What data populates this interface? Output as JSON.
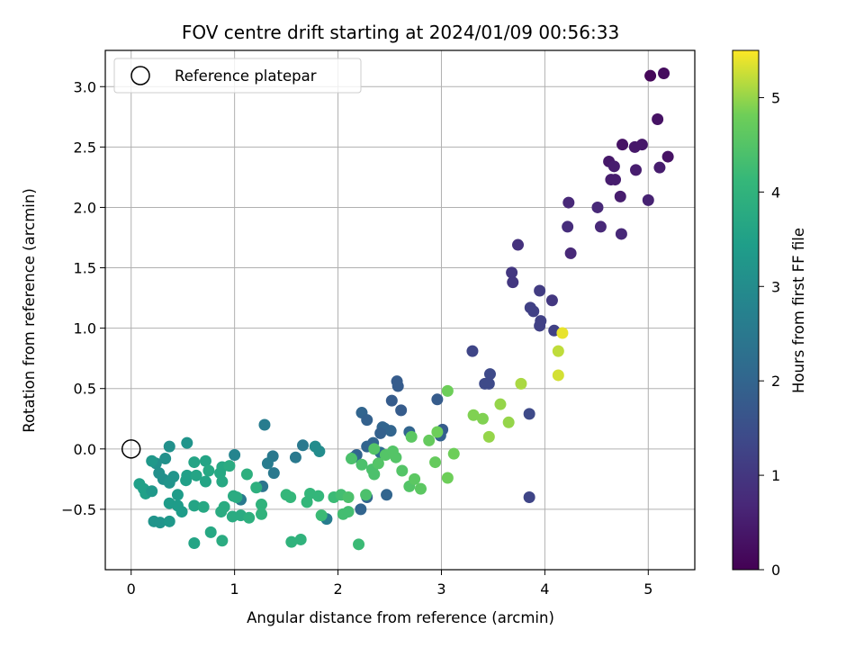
{
  "chart_data": {
    "type": "scatter",
    "title": "FOV centre drift starting at 2024/01/09 00:56:33",
    "xlabel": "Angular distance from reference (arcmin)",
    "ylabel": "Rotation from reference (arcmin)",
    "xlim": [
      -0.25,
      5.45
    ],
    "ylim": [
      -1.0,
      3.3
    ],
    "x_ticks": [
      0,
      1,
      2,
      3,
      4,
      5
    ],
    "x_tick_labels": [
      "0",
      "1",
      "2",
      "3",
      "4",
      "5"
    ],
    "y_ticks": [
      -0.5,
      0.0,
      0.5,
      1.0,
      1.5,
      2.0,
      2.5,
      3.0
    ],
    "y_tick_labels": [
      "−0.5",
      "0.0",
      "0.5",
      "1.0",
      "1.5",
      "2.0",
      "2.5",
      "3.0"
    ],
    "grid": true,
    "legend": {
      "placement": "upper-left",
      "entries": [
        {
          "label": "Reference platepar",
          "marker": "open-circle",
          "x": 0,
          "y": 0
        }
      ]
    },
    "colorbar": {
      "label": "Hours from first FF file",
      "colormap": "viridis",
      "range": [
        0,
        5.5
      ],
      "ticks": [
        0,
        1,
        2,
        3,
        4,
        5
      ],
      "tick_labels": [
        "0",
        "1",
        "2",
        "3",
        "4",
        "5"
      ]
    },
    "points": [
      [
        5.02,
        3.09,
        0.1
      ],
      [
        5.15,
        3.11,
        0.2
      ],
      [
        5.09,
        2.73,
        0.3
      ],
      [
        4.75,
        2.52,
        0.3
      ],
      [
        4.87,
        2.5,
        0.4
      ],
      [
        4.94,
        2.52,
        0.4
      ],
      [
        4.62,
        2.38,
        0.4
      ],
      [
        4.67,
        2.34,
        0.5
      ],
      [
        5.19,
        2.42,
        0.3
      ],
      [
        4.88,
        2.31,
        0.5
      ],
      [
        5.11,
        2.33,
        0.5
      ],
      [
        4.64,
        2.23,
        0.5
      ],
      [
        4.68,
        2.23,
        0.5
      ],
      [
        4.73,
        2.09,
        0.5
      ],
      [
        5.0,
        2.06,
        0.6
      ],
      [
        4.51,
        2.0,
        0.7
      ],
      [
        4.23,
        2.04,
        0.7
      ],
      [
        4.22,
        1.84,
        0.8
      ],
      [
        4.54,
        1.84,
        0.7
      ],
      [
        4.74,
        1.78,
        0.7
      ],
      [
        4.25,
        1.62,
        0.7
      ],
      [
        3.74,
        1.69,
        0.9
      ],
      [
        3.68,
        1.46,
        1.0
      ],
      [
        3.69,
        1.38,
        1.0
      ],
      [
        3.95,
        1.31,
        1.1
      ],
      [
        4.07,
        1.23,
        1.0
      ],
      [
        3.86,
        1.17,
        1.2
      ],
      [
        3.89,
        1.14,
        1.2
      ],
      [
        3.96,
        1.06,
        1.2
      ],
      [
        3.95,
        1.02,
        1.2
      ],
      [
        4.09,
        0.98,
        1.2
      ],
      [
        3.3,
        0.81,
        1.3
      ],
      [
        3.47,
        0.62,
        1.4
      ],
      [
        3.42,
        0.54,
        1.4
      ],
      [
        3.46,
        0.54,
        1.4
      ],
      [
        3.85,
        0.29,
        1.4
      ],
      [
        3.85,
        -0.4,
        1.3
      ],
      [
        2.57,
        0.56,
        1.8
      ],
      [
        2.58,
        0.52,
        1.8
      ],
      [
        2.52,
        0.4,
        1.8
      ],
      [
        2.61,
        0.32,
        1.8
      ],
      [
        2.23,
        0.3,
        2.0
      ],
      [
        2.28,
        0.24,
        1.9
      ],
      [
        2.43,
        0.18,
        2.0
      ],
      [
        2.45,
        0.17,
        2.0
      ],
      [
        2.51,
        0.15,
        2.0
      ],
      [
        2.41,
        0.13,
        1.9
      ],
      [
        2.69,
        0.14,
        2.0
      ],
      [
        3.01,
        0.16,
        1.8
      ],
      [
        2.96,
        0.41,
        1.8
      ],
      [
        2.99,
        0.11,
        1.9
      ],
      [
        2.34,
        0.05,
        2.0
      ],
      [
        2.28,
        0.02,
        2.0
      ],
      [
        2.18,
        -0.05,
        2.0
      ],
      [
        2.15,
        -0.07,
        2.1
      ],
      [
        2.41,
        -0.03,
        2.2
      ],
      [
        2.28,
        -0.4,
        2.0
      ],
      [
        2.47,
        -0.38,
        2.0
      ],
      [
        2.22,
        -0.5,
        2.0
      ],
      [
        1.29,
        0.2,
        2.6
      ],
      [
        1.37,
        -0.06,
        2.5
      ],
      [
        1.32,
        -0.12,
        2.6
      ],
      [
        1.38,
        -0.2,
        2.5
      ],
      [
        1.27,
        -0.31,
        2.4
      ],
      [
        1.06,
        -0.42,
        2.5
      ],
      [
        1.0,
        -0.05,
        2.8
      ],
      [
        1.66,
        0.03,
        2.5
      ],
      [
        1.59,
        -0.07,
        2.5
      ],
      [
        1.78,
        0.02,
        3.0
      ],
      [
        1.82,
        -0.02,
        3.0
      ],
      [
        1.89,
        -0.58,
        2.6
      ],
      [
        0.54,
        0.05,
        3.2
      ],
      [
        0.37,
        0.02,
        3.1
      ],
      [
        0.33,
        -0.08,
        3.1
      ],
      [
        0.24,
        -0.12,
        3.1
      ],
      [
        0.2,
        -0.1,
        3.3
      ],
      [
        0.27,
        -0.2,
        3.1
      ],
      [
        0.31,
        -0.25,
        3.1
      ],
      [
        0.41,
        -0.23,
        3.2
      ],
      [
        0.37,
        -0.28,
        3.2
      ],
      [
        0.08,
        -0.29,
        3.5
      ],
      [
        0.12,
        -0.33,
        3.5
      ],
      [
        0.14,
        -0.37,
        3.5
      ],
      [
        0.2,
        -0.35,
        3.3
      ],
      [
        0.37,
        -0.45,
        3.4
      ],
      [
        0.45,
        -0.38,
        3.4
      ],
      [
        0.45,
        -0.47,
        3.4
      ],
      [
        0.49,
        -0.52,
        3.4
      ],
      [
        0.22,
        -0.6,
        3.2
      ],
      [
        0.28,
        -0.61,
        3.2
      ],
      [
        0.37,
        -0.6,
        3.3
      ],
      [
        0.54,
        -0.22,
        3.5
      ],
      [
        0.53,
        -0.26,
        3.5
      ],
      [
        0.61,
        -0.11,
        3.6
      ],
      [
        0.63,
        -0.22,
        3.6
      ],
      [
        0.72,
        -0.1,
        3.6
      ],
      [
        0.75,
        -0.18,
        3.7
      ],
      [
        0.72,
        -0.27,
        3.6
      ],
      [
        0.86,
        -0.2,
        3.7
      ],
      [
        0.88,
        -0.15,
        3.7
      ],
      [
        0.88,
        -0.27,
        3.7
      ],
      [
        0.95,
        -0.14,
        3.8
      ],
      [
        0.99,
        -0.39,
        3.8
      ],
      [
        1.02,
        -0.4,
        3.8
      ],
      [
        0.61,
        -0.47,
        3.6
      ],
      [
        0.7,
        -0.48,
        3.7
      ],
      [
        0.87,
        -0.52,
        3.8
      ],
      [
        0.9,
        -0.48,
        3.8
      ],
      [
        0.98,
        -0.56,
        3.8
      ],
      [
        1.06,
        -0.55,
        3.8
      ],
      [
        1.14,
        -0.57,
        3.9
      ],
      [
        1.26,
        -0.54,
        4.0
      ],
      [
        1.26,
        -0.46,
        4.0
      ],
      [
        1.12,
        -0.21,
        3.9
      ],
      [
        1.21,
        -0.32,
        3.9
      ],
      [
        0.61,
        -0.78,
        3.6
      ],
      [
        0.77,
        -0.69,
        3.7
      ],
      [
        0.88,
        -0.76,
        3.8
      ],
      [
        1.5,
        -0.38,
        4.1
      ],
      [
        1.54,
        -0.4,
        4.1
      ],
      [
        1.73,
        -0.37,
        4.1
      ],
      [
        1.7,
        -0.44,
        4.1
      ],
      [
        1.81,
        -0.39,
        4.1
      ],
      [
        1.55,
        -0.77,
        4.0
      ],
      [
        1.64,
        -0.75,
        4.0
      ],
      [
        1.84,
        -0.55,
        4.2
      ],
      [
        1.96,
        -0.4,
        4.2
      ],
      [
        2.03,
        -0.38,
        4.3
      ],
      [
        2.05,
        -0.54,
        4.3
      ],
      [
        2.1,
        -0.52,
        4.3
      ],
      [
        2.1,
        -0.4,
        4.4
      ],
      [
        2.27,
        -0.38,
        4.4
      ],
      [
        2.2,
        -0.79,
        4.2
      ],
      [
        2.13,
        -0.08,
        4.4
      ],
      [
        2.23,
        -0.13,
        4.4
      ],
      [
        2.33,
        -0.17,
        4.4
      ],
      [
        2.35,
        -0.21,
        4.4
      ],
      [
        2.39,
        -0.12,
        4.5
      ],
      [
        2.35,
        0.0,
        4.5
      ],
      [
        2.46,
        -0.05,
        4.5
      ],
      [
        2.53,
        -0.02,
        4.5
      ],
      [
        2.56,
        -0.07,
        4.5
      ],
      [
        2.62,
        -0.18,
        4.5
      ],
      [
        2.69,
        -0.31,
        4.5
      ],
      [
        2.74,
        -0.25,
        4.6
      ],
      [
        2.8,
        -0.33,
        4.6
      ],
      [
        2.71,
        0.1,
        4.6
      ],
      [
        2.88,
        0.07,
        4.7
      ],
      [
        2.94,
        -0.11,
        4.7
      ],
      [
        2.96,
        0.14,
        4.8
      ],
      [
        3.06,
        0.48,
        4.8
      ],
      [
        3.06,
        -0.24,
        4.8
      ],
      [
        3.12,
        -0.04,
        4.8
      ],
      [
        3.31,
        0.28,
        4.9
      ],
      [
        3.4,
        0.25,
        4.9
      ],
      [
        3.46,
        0.1,
        5.0
      ],
      [
        3.57,
        0.37,
        5.0
      ],
      [
        3.65,
        0.22,
        5.0
      ],
      [
        3.77,
        0.54,
        5.1
      ],
      [
        4.13,
        0.81,
        5.2
      ],
      [
        4.17,
        0.96,
        5.4
      ],
      [
        4.13,
        0.61,
        5.3
      ]
    ]
  }
}
